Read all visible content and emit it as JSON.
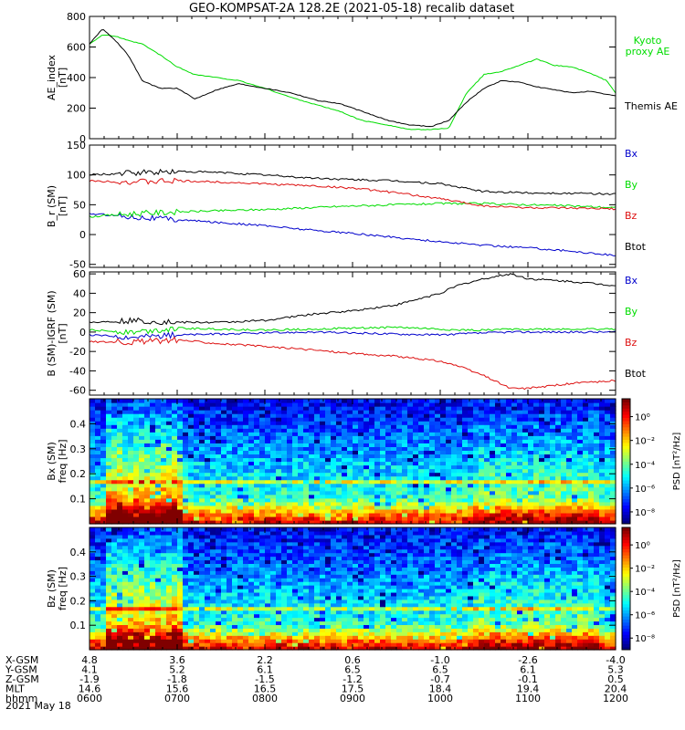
{
  "title": "GEO-KOMPSAT-2A 128.2E (2021-05-18) recalib dataset",
  "date_label": "2021 May 18",
  "colors": {
    "black": "#000000",
    "blue": "#0000cc",
    "green": "#00dd00",
    "red": "#dd1111",
    "kyoto": "#22dd22"
  },
  "chart_data": [
    {
      "type": "line",
      "ylabel": "AE_index\n[nT]",
      "ylim": [
        0,
        800
      ],
      "yticks": [
        0,
        200,
        400,
        600,
        800
      ],
      "x": [
        6.0,
        6.15,
        6.3,
        6.45,
        6.6,
        6.8,
        7.0,
        7.2,
        7.45,
        7.7,
        8.0,
        8.3,
        8.6,
        8.85,
        9.1,
        9.4,
        9.65,
        9.9,
        10.1,
        10.3,
        10.5,
        10.7,
        10.9,
        11.1,
        11.3,
        11.5,
        11.7,
        11.9,
        12.0
      ],
      "legend": [
        "Kyoto\nproxy AE",
        "Themis AE"
      ],
      "series": [
        {
          "name": "Kyoto\nproxy AE",
          "color": "green",
          "values": [
            620,
            680,
            670,
            640,
            620,
            550,
            470,
            420,
            400,
            380,
            330,
            270,
            220,
            180,
            120,
            90,
            60,
            60,
            70,
            300,
            420,
            440,
            480,
            520,
            480,
            470,
            430,
            380,
            300
          ]
        },
        {
          "name": "Themis AE",
          "color": "black",
          "values": [
            620,
            720,
            640,
            540,
            380,
            330,
            330,
            260,
            320,
            360,
            330,
            300,
            250,
            230,
            180,
            120,
            90,
            80,
            120,
            240,
            330,
            380,
            370,
            340,
            320,
            300,
            310,
            290,
            280
          ]
        }
      ]
    },
    {
      "type": "line",
      "ylabel": "B_r (SM)\n[nT]",
      "ylim": [
        -55,
        150
      ],
      "yticks": [
        -50,
        0,
        50,
        100,
        150
      ],
      "x": [
        6.0,
        6.5,
        7.0,
        7.5,
        8.0,
        8.5,
        9.0,
        9.5,
        10.0,
        10.5,
        11.0,
        11.5,
        12.0
      ],
      "legend": [
        "Bx",
        "By",
        "Bz",
        "Btot"
      ],
      "series": [
        {
          "name": "Btot",
          "color": "black",
          "values": [
            100,
            103,
            106,
            104,
            100,
            95,
            92,
            90,
            85,
            72,
            70,
            69,
            68
          ]
        },
        {
          "name": "Bx",
          "color": "blue",
          "values": [
            35,
            30,
            25,
            20,
            15,
            8,
            2,
            -5,
            -12,
            -18,
            -22,
            -28,
            -35
          ]
        },
        {
          "name": "By",
          "color": "green",
          "values": [
            30,
            35,
            38,
            40,
            42,
            45,
            48,
            50,
            52,
            52,
            50,
            48,
            45
          ]
        },
        {
          "name": "Bz",
          "color": "red",
          "values": [
            90,
            88,
            90,
            88,
            85,
            82,
            78,
            70,
            60,
            48,
            45,
            44,
            43
          ]
        }
      ]
    },
    {
      "type": "line",
      "ylabel": "B (SM)-IGRF (SM)\n[nT]",
      "ylim": [
        -65,
        62
      ],
      "yticks": [
        -60,
        -40,
        -20,
        0,
        20,
        40,
        60
      ],
      "x": [
        6.0,
        6.5,
        7.0,
        7.5,
        8.0,
        8.5,
        9.0,
        9.5,
        10.0,
        10.2,
        10.5,
        10.8,
        11.0,
        11.5,
        12.0
      ],
      "legend": [
        "Bx",
        "By",
        "Bz",
        "Btot"
      ],
      "series": [
        {
          "name": "Btot",
          "color": "black",
          "values": [
            10,
            12,
            10,
            10,
            12,
            18,
            22,
            28,
            40,
            48,
            55,
            60,
            55,
            52,
            48
          ]
        },
        {
          "name": "Bx",
          "color": "blue",
          "values": [
            -3,
            -5,
            -3,
            -2,
            -1,
            0,
            -1,
            -2,
            -3,
            -2,
            -1,
            0,
            0,
            0,
            0
          ]
        },
        {
          "name": "By",
          "color": "green",
          "values": [
            2,
            0,
            4,
            3,
            2,
            3,
            4,
            5,
            3,
            2,
            2,
            3,
            3,
            3,
            3
          ]
        },
        {
          "name": "Bz",
          "color": "red",
          "values": [
            -10,
            -10,
            -8,
            -12,
            -15,
            -18,
            -22,
            -25,
            -30,
            -35,
            -45,
            -58,
            -58,
            -53,
            -50
          ]
        }
      ]
    },
    {
      "type": "heatmap",
      "ylabel": "Bx (SM)\nfreq [Hz]",
      "ylim": [
        0,
        0.5
      ],
      "yticks": [
        0.1,
        0.2,
        0.3,
        0.4
      ],
      "colorbar_label": "PSD [nT²/Hz]",
      "colorbar_ticks": [
        "10⁻⁸",
        "10⁻⁶",
        "10⁻⁴",
        "10⁻²",
        "10⁰"
      ],
      "colorbar_range_log10": [
        -9,
        1.5
      ]
    },
    {
      "type": "heatmap",
      "ylabel": "Bz (SM)\nfreq [Hz]",
      "ylim": [
        0,
        0.5
      ],
      "yticks": [
        0.1,
        0.2,
        0.3,
        0.4
      ],
      "colorbar_label": "PSD [nT²/Hz]",
      "colorbar_ticks": [
        "10⁻⁸",
        "10⁻⁶",
        "10⁻⁴",
        "10⁻²",
        "10⁰"
      ],
      "colorbar_range_log10": [
        -9,
        1.5
      ]
    }
  ],
  "xaxis": {
    "xlim": [
      6.0,
      12.0
    ],
    "rows": [
      {
        "label": "X-GSM",
        "values": [
          "4.8",
          "3.6",
          "2.2",
          "0.6",
          "-1.0",
          "-2.6",
          "-4.0"
        ]
      },
      {
        "label": "Y-GSM",
        "values": [
          "4.1",
          "5.2",
          "6.1",
          "6.5",
          "6.5",
          "6.1",
          "5.3"
        ]
      },
      {
        "label": "Z-GSM",
        "values": [
          "-1.9",
          "-1.8",
          "-1.5",
          "-1.2",
          "-0.7",
          "-0.1",
          "0.5"
        ]
      },
      {
        "label": "MLT",
        "values": [
          "14.6",
          "15.6",
          "16.5",
          "17.5",
          "18.4",
          "19.4",
          "20.4"
        ]
      },
      {
        "label": "hhmm",
        "values": [
          "0600",
          "0700",
          "0800",
          "0900",
          "1000",
          "1100",
          "1200"
        ]
      }
    ]
  }
}
